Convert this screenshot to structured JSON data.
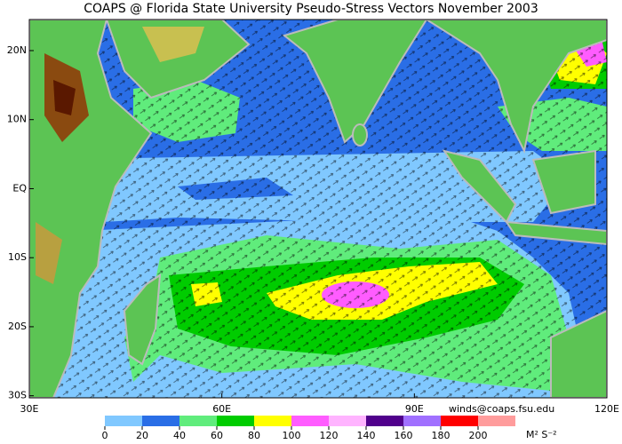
{
  "map": {
    "title": "COAPS @ Florida State University Pseudo-Stress Vectors November 2003",
    "xlim": [
      30,
      120
    ],
    "ylim": [
      -30.3,
      24.5
    ],
    "lat_ticks": [
      {
        "value": 20,
        "label": "20N"
      },
      {
        "value": 10,
        "label": "10N"
      },
      {
        "value": 0,
        "label": "EQ"
      },
      {
        "value": -10,
        "label": "10S"
      },
      {
        "value": -20,
        "label": "20S"
      },
      {
        "value": -30,
        "label": "30S"
      }
    ],
    "lon_ticks": [
      {
        "value": 30,
        "label": "30E"
      },
      {
        "value": 60,
        "label": "60E"
      },
      {
        "value": 90,
        "label": "90E"
      },
      {
        "value": 120,
        "label": "120E"
      }
    ],
    "credit": "winds@coaps.fsu.edu",
    "colorbar": {
      "ticks": [
        0,
        20,
        40,
        60,
        80,
        100,
        120,
        140,
        160,
        180,
        200
      ],
      "colors": [
        "#80c8ff",
        "#2a6ee6",
        "#60ec7c",
        "#00cc00",
        "#ffff00",
        "#ff5cff",
        "#ffb4ff",
        "#50008c",
        "#a070ff",
        "#ff0000",
        "#ff9c9c"
      ],
      "unit": "M² S⁻²"
    }
  }
}
